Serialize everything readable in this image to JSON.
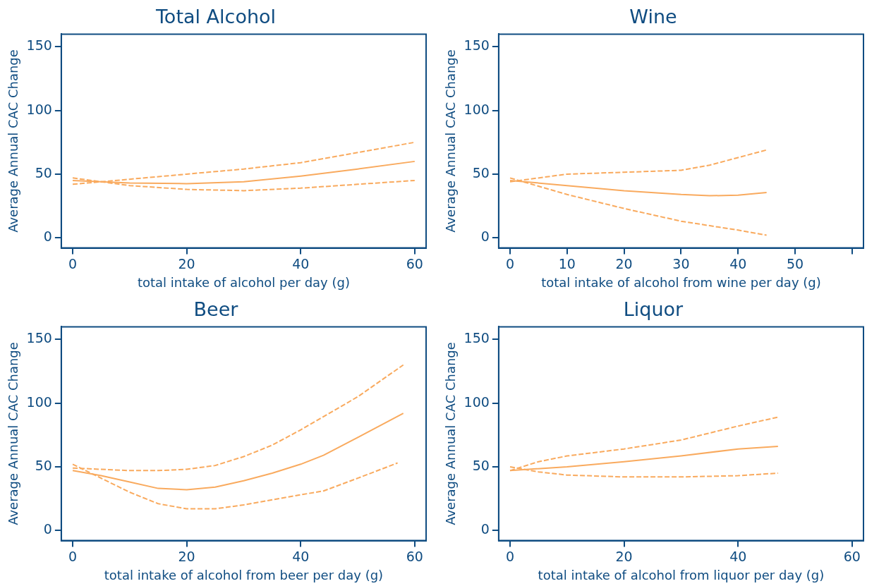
{
  "chart_data": [
    {
      "type": "line",
      "title": "Total Alcohol",
      "xlabel": "total intake of alcohol per day (g)",
      "ylabel": "Average Annual CAC Change",
      "xlim": [
        -2,
        62
      ],
      "ylim": [
        -8,
        160
      ],
      "xticks": [
        0,
        20,
        40,
        60
      ],
      "yticks": [
        0,
        50,
        100,
        150
      ],
      "grid": false,
      "legend": false,
      "marker": "none",
      "series": [
        {
          "color": "#f9aa5e",
          "line_style": "solid",
          "x": [
            0,
            10,
            20,
            30,
            40,
            50,
            60
          ],
          "values": [
            45,
            43,
            42.5,
            44,
            48.5,
            54,
            60
          ]
        },
        {
          "color": "#f9aa5e",
          "line_style": "dashed",
          "x": [
            0,
            10,
            20,
            30,
            40,
            50,
            60
          ],
          "values": [
            42,
            46,
            50,
            54,
            59,
            67,
            75
          ]
        },
        {
          "color": "#f9aa5e",
          "line_style": "dashed",
          "x": [
            0,
            10,
            20,
            30,
            40,
            50,
            60
          ],
          "values": [
            47,
            41,
            38,
            37,
            39,
            42,
            45
          ]
        }
      ]
    },
    {
      "type": "line",
      "title": "Wine",
      "xlabel": "total intake of alcohol from wine per day (g)",
      "ylabel": "Average Annual CAC Change",
      "xlim": [
        -2,
        62
      ],
      "ylim": [
        -8,
        160
      ],
      "xticks": [
        0,
        10,
        20,
        30,
        40,
        50,
        {
          "value": 60,
          "label": null
        }
      ],
      "yticks": [
        0,
        50,
        100,
        150
      ],
      "grid": false,
      "legend": false,
      "marker": "none",
      "series": [
        {
          "color": "#f9aa5e",
          "line_style": "solid",
          "x": [
            0,
            10,
            20,
            30,
            35,
            40,
            45
          ],
          "values": [
            45,
            41,
            37,
            34,
            33,
            33.5,
            35.5
          ]
        },
        {
          "color": "#f9aa5e",
          "line_style": "dashed",
          "x": [
            0,
            10,
            20,
            30,
            35,
            40,
            45
          ],
          "values": [
            44,
            50,
            51.5,
            53,
            57,
            63,
            69
          ]
        },
        {
          "color": "#f9aa5e",
          "line_style": "dashed",
          "x": [
            0,
            10,
            20,
            30,
            40,
            45
          ],
          "values": [
            47,
            34,
            23,
            13,
            6,
            2
          ]
        }
      ]
    },
    {
      "type": "line",
      "title": "Beer",
      "xlabel": "total intake of alcohol from beer per day (g)",
      "ylabel": "Average Annual CAC Change",
      "xlim": [
        -2,
        62
      ],
      "ylim": [
        -8,
        160
      ],
      "xticks": [
        0,
        20,
        40,
        60
      ],
      "yticks": [
        0,
        50,
        100,
        150
      ],
      "grid": false,
      "legend": false,
      "marker": "none",
      "series": [
        {
          "color": "#f9aa5e",
          "line_style": "solid",
          "x": [
            0,
            5,
            10,
            15,
            20,
            25,
            30,
            35,
            40,
            44,
            50,
            58
          ],
          "values": [
            47,
            43,
            38,
            33,
            32,
            34,
            39,
            45,
            52,
            59,
            73,
            92
          ]
        },
        {
          "color": "#f9aa5e",
          "line_style": "dashed",
          "x": [
            0,
            5,
            10,
            15,
            20,
            25,
            30,
            35,
            40,
            45,
            50,
            58
          ],
          "values": [
            49,
            48,
            47,
            47,
            48,
            51,
            58,
            67,
            79,
            92,
            105,
            130
          ]
        },
        {
          "color": "#f9aa5e",
          "line_style": "dashed",
          "x": [
            0,
            5,
            10,
            15,
            20,
            25,
            30,
            35,
            40,
            44,
            50,
            57
          ],
          "values": [
            52,
            41,
            30,
            21,
            17,
            17,
            20,
            24,
            28,
            31,
            41,
            53
          ]
        }
      ]
    },
    {
      "type": "line",
      "title": "Liquor",
      "xlabel": "total intake of alcohol from liquor per day (g)",
      "ylabel": "Average Annual CAC Change",
      "xlim": [
        -2,
        62
      ],
      "ylim": [
        -8,
        160
      ],
      "xticks": [
        0,
        20,
        40,
        60
      ],
      "yticks": [
        0,
        50,
        100,
        150
      ],
      "grid": false,
      "legend": false,
      "marker": "none",
      "series": [
        {
          "color": "#f9aa5e",
          "line_style": "solid",
          "x": [
            0,
            10,
            20,
            30,
            40,
            47
          ],
          "values": [
            47,
            50,
            54,
            58.5,
            64,
            66
          ]
        },
        {
          "color": "#f9aa5e",
          "line_style": "dashed",
          "x": [
            0,
            5,
            10,
            20,
            30,
            40,
            47
          ],
          "values": [
            47,
            54,
            58.5,
            64,
            71,
            82,
            89
          ]
        },
        {
          "color": "#f9aa5e",
          "line_style": "dashed",
          "x": [
            0,
            5,
            10,
            20,
            30,
            40,
            47
          ],
          "values": [
            50,
            46,
            43.5,
            42,
            42,
            43,
            45
          ]
        }
      ]
    }
  ]
}
